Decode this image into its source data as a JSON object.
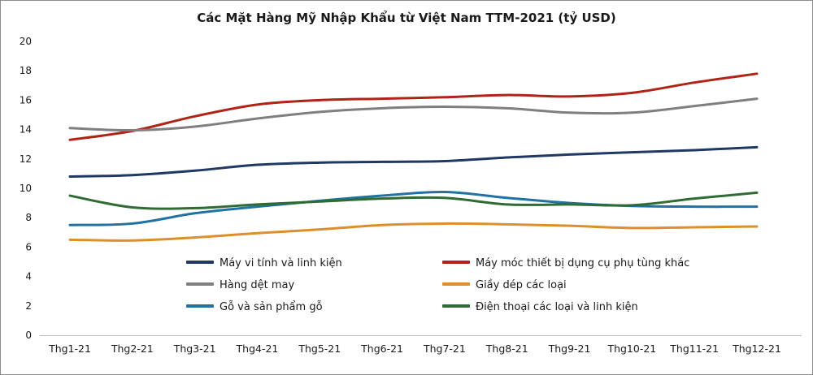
{
  "chart_data": {
    "type": "line",
    "title": "Các Mặt Hàng Mỹ Nhập Khẩu từ Việt Nam TTM-2021 (tỷ USD)",
    "xlabel": "",
    "ylabel": "",
    "ylim": [
      0,
      20
    ],
    "yticks": [
      0,
      2,
      4,
      6,
      8,
      10,
      12,
      14,
      16,
      18,
      20
    ],
    "grid": false,
    "legend_position": "bottom-inside",
    "legend_columns": 2,
    "categories": [
      "Thg1-21",
      "Thg2-21",
      "Thg3-21",
      "Thg4-21",
      "Thg5-21",
      "Thg6-21",
      "Thg7-21",
      "Thg8-21",
      "Thg9-21",
      "Thg10-21",
      "Thg11-21",
      "Thg12-21"
    ],
    "series": [
      {
        "name": "Máy vi tính và linh kiện",
        "color": "#1f3864",
        "values": [
          10.8,
          10.9,
          11.2,
          11.6,
          11.75,
          11.8,
          11.85,
          12.1,
          12.3,
          12.45,
          12.6,
          12.8
        ]
      },
      {
        "name": "Máy móc thiết bị dụng cụ phụ tùng khác",
        "color": "#b02418",
        "values": [
          13.3,
          13.9,
          14.9,
          15.7,
          16.0,
          16.1,
          16.2,
          16.35,
          16.25,
          16.5,
          17.2,
          17.8
        ]
      },
      {
        "name": "Hàng dệt may",
        "color": "#7f7f7f",
        "values": [
          14.1,
          13.95,
          14.2,
          14.75,
          15.2,
          15.45,
          15.55,
          15.45,
          15.15,
          15.15,
          15.6,
          16.1
        ]
      },
      {
        "name": "Giầy dép các loại",
        "color": "#dd8f2d",
        "values": [
          6.5,
          6.45,
          6.65,
          6.95,
          7.2,
          7.5,
          7.6,
          7.55,
          7.45,
          7.3,
          7.35,
          7.4
        ]
      },
      {
        "name": "Gỗ và sản phẩm gỗ",
        "color": "#2271a3",
        "values": [
          7.5,
          7.6,
          8.3,
          8.75,
          9.15,
          9.5,
          9.75,
          9.35,
          9.0,
          8.8,
          8.75,
          8.75
        ]
      },
      {
        "name": "Điện thoại các loại và linh kiện",
        "color": "#2f6b33",
        "values": [
          9.5,
          8.7,
          8.65,
          8.9,
          9.1,
          9.3,
          9.35,
          8.9,
          8.9,
          8.85,
          9.3,
          9.7
        ]
      }
    ]
  }
}
